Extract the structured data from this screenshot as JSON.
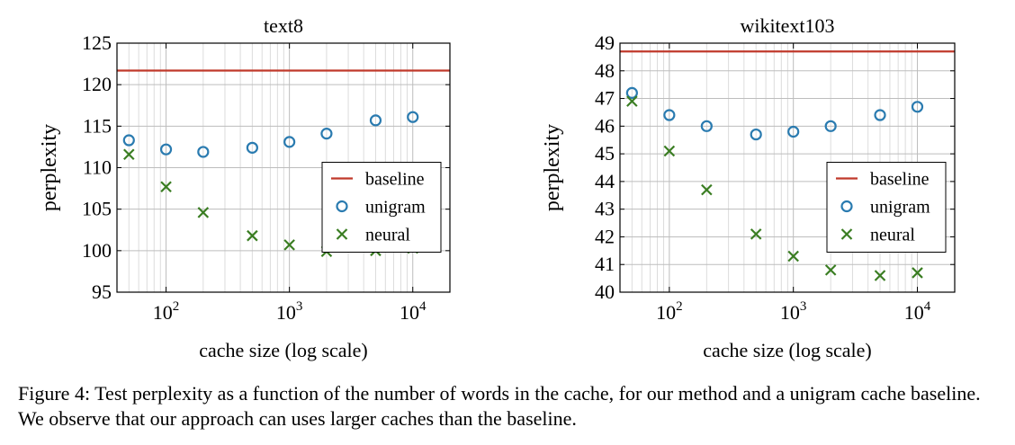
{
  "chart_data": [
    {
      "type": "scatter",
      "title": "text8",
      "xlabel": "cache size (log scale)",
      "ylabel": "perplexity",
      "xscale": "log",
      "xlim": [
        40,
        20000
      ],
      "ylim": [
        95,
        125
      ],
      "xticks": [
        100,
        1000,
        10000
      ],
      "xtick_labels": [
        {
          "base": "10",
          "exp": "2"
        },
        {
          "base": "10",
          "exp": "3"
        },
        {
          "base": "10",
          "exp": "4"
        }
      ],
      "yticks": [
        95,
        100,
        105,
        110,
        115,
        120,
        125
      ],
      "ytick_labels": [
        "95",
        "100",
        "105",
        "110",
        "115",
        "120",
        "125"
      ],
      "grid": true,
      "legend_position": "center-right",
      "baseline": {
        "name": "baseline",
        "value": 121.7,
        "color": "#c0392b"
      },
      "series": [
        {
          "name": "unigram",
          "marker": "circle",
          "color": "#2a7bb0",
          "x": [
            50,
            100,
            200,
            500,
            1000,
            2000,
            5000,
            10000
          ],
          "y": [
            113.3,
            112.2,
            111.9,
            112.4,
            113.1,
            114.1,
            115.7,
            116.1
          ]
        },
        {
          "name": "neural",
          "marker": "x",
          "color": "#3a7d22",
          "x": [
            50,
            100,
            200,
            500,
            1000,
            2000,
            5000,
            10000
          ],
          "y": [
            111.6,
            107.7,
            104.6,
            101.8,
            100.7,
            99.9,
            100.0,
            100.3
          ]
        }
      ]
    },
    {
      "type": "scatter",
      "title": "wikitext103",
      "xlabel": "cache size (log scale)",
      "ylabel": "perplexity",
      "xscale": "log",
      "xlim": [
        40,
        20000
      ],
      "ylim": [
        40,
        49
      ],
      "xticks": [
        100,
        1000,
        10000
      ],
      "xtick_labels": [
        {
          "base": "10",
          "exp": "2"
        },
        {
          "base": "10",
          "exp": "3"
        },
        {
          "base": "10",
          "exp": "4"
        }
      ],
      "yticks": [
        40,
        41,
        42,
        43,
        44,
        45,
        46,
        47,
        48,
        49
      ],
      "ytick_labels": [
        "40",
        "41",
        "42",
        "43",
        "44",
        "45",
        "46",
        "47",
        "48",
        "49"
      ],
      "grid": true,
      "legend_position": "center-right",
      "baseline": {
        "name": "baseline",
        "value": 48.7,
        "color": "#c0392b"
      },
      "series": [
        {
          "name": "unigram",
          "marker": "circle",
          "color": "#2a7bb0",
          "x": [
            50,
            100,
            200,
            500,
            1000,
            2000,
            5000,
            10000
          ],
          "y": [
            47.2,
            46.4,
            46.0,
            45.7,
            45.8,
            46.0,
            46.4,
            46.7
          ]
        },
        {
          "name": "neural",
          "marker": "x",
          "color": "#3a7d22",
          "x": [
            50,
            100,
            200,
            500,
            1000,
            2000,
            5000,
            10000
          ],
          "y": [
            46.9,
            45.1,
            43.7,
            42.1,
            41.3,
            40.8,
            40.6,
            40.7
          ]
        }
      ]
    }
  ],
  "caption": "Figure 4: Test perplexity as a function of the number of words in the cache, for our method and a unigram cache baseline. We observe that our approach can uses larger caches than the baseline."
}
